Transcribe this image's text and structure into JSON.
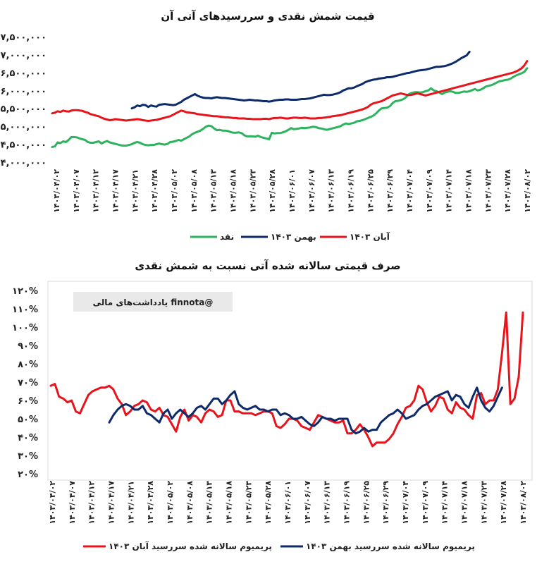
{
  "watermark": "یادداشت‌های مالی finnota@",
  "colors": {
    "spot": "#2db35d",
    "bahman": "#0d2a6b",
    "aban": "#e8141c",
    "watermark_bg": "#e9e9e9"
  },
  "x_labels": [
    "۱۴۰۳/۰۴/۰۲",
    "۱۴۰۳/۰۴/۰۷",
    "۱۴۰۳/۰۴/۱۲",
    "۱۴۰۳/۰۴/۱۷",
    "۱۴۰۳/۰۴/۲۱",
    "۱۴۰۳/۰۴/۲۸",
    "۱۴۰۳/۰۵/۰۲",
    "۱۴۰۳/۰۵/۰۸",
    "۱۴۰۳/۰۵/۱۳",
    "۱۴۰۳/۰۵/۱۸",
    "۱۴۰۳/۰۵/۲۳",
    "۱۴۰۳/۰۵/۲۸",
    "۱۴۰۳/۰۶/۰۱",
    "۱۴۰۳/۰۶/۰۷",
    "۱۴۰۳/۰۶/۱۳",
    "۱۴۰۳/۰۶/۱۹",
    "۱۴۰۳/۰۶/۲۵",
    "۱۴۰۳/۰۶/۲۹",
    "۱۴۰۳/۰۷/۰۴",
    "۱۴۰۳/۰۷/۰۹",
    "۱۴۰۳/۰۷/۱۴",
    "۱۴۰۳/۰۷/۱۸",
    "۱۴۰۳/۰۷/۲۳",
    "۱۴۰۳/۰۷/۲۸",
    "۱۴۰۳/۰۸/۰۲"
  ],
  "chart_data": [
    {
      "type": "line",
      "title": "قیمت شمش نقدی و سررسیدهای آتی آن",
      "ylim": [
        4000000,
        7500000
      ],
      "y_ticks": [
        4000000,
        4500000,
        5000000,
        5500000,
        6000000,
        6500000,
        7000000,
        7500000
      ],
      "y_tick_labels": [
        "۴,۰۰۰,۰۰۰",
        "۴,۵۰۰,۰۰۰",
        "۵,۰۰۰,۰۰۰",
        "۵,۵۰۰,۰۰۰",
        "۶,۰۰۰,۰۰۰",
        "۶,۵۰۰,۰۰۰",
        "۷,۰۰۰,۰۰۰",
        "۷,۵۰۰,۰۰۰"
      ],
      "legend_position": "bottom",
      "grid": false,
      "series": [
        {
          "name": "نقد",
          "color": "#2db35d",
          "start": 0,
          "values": [
            4420000,
            4440000,
            4550000,
            4530000,
            4580000,
            4560000,
            4620000,
            4700000,
            4700000,
            4690000,
            4660000,
            4640000,
            4620000,
            4560000,
            4540000,
            4540000,
            4560000,
            4580000,
            4520000,
            4560000,
            4590000,
            4550000,
            4530000,
            4510000,
            4490000,
            4470000,
            4460000,
            4460000,
            4480000,
            4500000,
            4540000,
            4560000,
            4540000,
            4500000,
            4480000,
            4470000,
            4480000,
            4480000,
            4500000,
            4520000,
            4500000,
            4490000,
            4510000,
            4560000,
            4570000,
            4590000,
            4620000,
            4600000,
            4640000,
            4680000,
            4720000,
            4780000,
            4820000,
            4850000,
            4880000,
            4930000,
            4990000,
            5020000,
            5000000,
            4940000,
            4890000,
            4900000,
            4880000,
            4880000,
            4870000,
            4840000,
            4820000,
            4820000,
            4830000,
            4810000,
            4750000,
            4720000,
            4720000,
            4720000,
            4710000,
            4740000,
            4700000,
            4680000,
            4660000,
            4640000,
            4820000,
            4800000,
            4810000,
            4810000,
            4830000,
            4860000,
            4900000,
            4950000,
            4920000,
            4930000,
            4940000,
            4960000,
            4950000,
            4960000,
            4970000,
            4990000,
            4980000,
            4950000,
            4940000,
            4920000,
            4900000,
            4920000,
            4940000,
            4960000,
            4980000,
            5000000,
            5050000,
            5080000,
            5060000,
            5080000,
            5100000,
            5140000,
            5150000,
            5170000,
            5200000,
            5230000,
            5260000,
            5300000,
            5360000,
            5440000,
            5500000,
            5510000,
            5520000,
            5560000,
            5650000,
            5700000,
            5710000,
            5730000,
            5760000,
            5820000,
            5900000,
            5930000,
            5950000,
            5950000,
            5940000,
            5950000,
            5980000,
            6000000,
            6060000,
            6000000,
            5980000,
            5940000,
            5900000,
            5940000,
            5960000,
            5980000,
            5960000,
            5930000,
            5930000,
            5950000,
            5970000,
            5960000,
            5980000,
            6010000,
            6040000,
            6000000,
            6020000,
            6060000,
            6110000,
            6130000,
            6150000,
            6180000,
            6220000,
            6260000,
            6270000,
            6290000,
            6300000,
            6330000,
            6380000,
            6420000,
            6450000,
            6480000,
            6520000,
            6620000
          ]
        },
        {
          "name": "بهمن ۱۴۰۳",
          "color": "#0d2a6b",
          "start": 29,
          "values": [
            5500000,
            5530000,
            5580000,
            5560000,
            5600000,
            5590000,
            5540000,
            5580000,
            5560000,
            5550000,
            5600000,
            5610000,
            5620000,
            5610000,
            5600000,
            5590000,
            5600000,
            5640000,
            5680000,
            5740000,
            5780000,
            5820000,
            5860000,
            5900000,
            5850000,
            5820000,
            5800000,
            5790000,
            5790000,
            5780000,
            5800000,
            5810000,
            5800000,
            5790000,
            5790000,
            5780000,
            5770000,
            5760000,
            5750000,
            5740000,
            5730000,
            5720000,
            5730000,
            5740000,
            5730000,
            5720000,
            5720000,
            5710000,
            5700000,
            5700000,
            5690000,
            5700000,
            5720000,
            5730000,
            5740000,
            5740000,
            5750000,
            5750000,
            5740000,
            5740000,
            5740000,
            5750000,
            5760000,
            5760000,
            5770000,
            5780000,
            5800000,
            5820000,
            5840000,
            5860000,
            5880000,
            5870000,
            5870000,
            5880000,
            5900000,
            5920000,
            5950000,
            6000000,
            6030000,
            6060000,
            6060000,
            6080000,
            6120000,
            6150000,
            6180000,
            6230000,
            6260000,
            6280000,
            6300000,
            6310000,
            6330000,
            6340000,
            6350000,
            6370000,
            6370000,
            6380000,
            6400000,
            6420000,
            6440000,
            6460000,
            6480000,
            6490000,
            6510000,
            6530000,
            6550000,
            6560000,
            6570000,
            6580000,
            6600000,
            6620000,
            6640000,
            6660000,
            6660000,
            6670000,
            6680000,
            6700000,
            6730000,
            6760000,
            6800000,
            6850000,
            6900000,
            6940000,
            6980000,
            7080000
          ]
        },
        {
          "name": "آبان ۱۴۰۳",
          "color": "#e8141c",
          "start": 0,
          "values": [
            5360000,
            5380000,
            5420000,
            5400000,
            5440000,
            5420000,
            5410000,
            5440000,
            5450000,
            5450000,
            5440000,
            5430000,
            5400000,
            5380000,
            5340000,
            5320000,
            5300000,
            5280000,
            5240000,
            5210000,
            5190000,
            5170000,
            5180000,
            5200000,
            5190000,
            5180000,
            5170000,
            5160000,
            5170000,
            5180000,
            5190000,
            5200000,
            5190000,
            5170000,
            5160000,
            5150000,
            5160000,
            5170000,
            5180000,
            5200000,
            5220000,
            5240000,
            5260000,
            5280000,
            5320000,
            5360000,
            5400000,
            5440000,
            5420000,
            5390000,
            5380000,
            5370000,
            5360000,
            5340000,
            5330000,
            5320000,
            5310000,
            5300000,
            5290000,
            5280000,
            5280000,
            5270000,
            5260000,
            5250000,
            5250000,
            5240000,
            5230000,
            5230000,
            5220000,
            5220000,
            5220000,
            5210000,
            5210000,
            5200000,
            5200000,
            5200000,
            5200000,
            5210000,
            5210000,
            5200000,
            5220000,
            5230000,
            5230000,
            5240000,
            5230000,
            5220000,
            5220000,
            5230000,
            5240000,
            5240000,
            5230000,
            5230000,
            5240000,
            5230000,
            5220000,
            5220000,
            5220000,
            5230000,
            5230000,
            5240000,
            5250000,
            5260000,
            5280000,
            5290000,
            5300000,
            5310000,
            5330000,
            5350000,
            5370000,
            5390000,
            5410000,
            5430000,
            5450000,
            5470000,
            5500000,
            5540000,
            5600000,
            5640000,
            5660000,
            5680000,
            5700000,
            5740000,
            5780000,
            5820000,
            5860000,
            5880000,
            5900000,
            5920000,
            5900000,
            5880000,
            5870000,
            5880000,
            5900000,
            5920000,
            5900000,
            5880000,
            5860000,
            5880000,
            5900000,
            5920000,
            5940000,
            5960000,
            5980000,
            6000000,
            6020000,
            6040000,
            6060000,
            6080000,
            6100000,
            6120000,
            6140000,
            6160000,
            6180000,
            6200000,
            6220000,
            6240000,
            6260000,
            6280000,
            6300000,
            6320000,
            6340000,
            6360000,
            6380000,
            6400000,
            6420000,
            6440000,
            6460000,
            6480000,
            6500000,
            6530000,
            6570000,
            6620000,
            6700000,
            6820000
          ]
        }
      ]
    },
    {
      "type": "line",
      "title": "صرف قیمتی سالانه شده آتی نسبت به شمش نقدی",
      "ylim": [
        20,
        120
      ],
      "y_ticks": [
        20,
        30,
        40,
        50,
        60,
        70,
        80,
        90,
        100,
        110,
        120
      ],
      "y_tick_labels": [
        "۲۰%",
        "۳۰%",
        "۴۰%",
        "۵۰%",
        "۶۰%",
        "۷۰%",
        "۸۰%",
        "۹۰%",
        "۱۰۰%",
        "۱۱۰%",
        "۱۲۰%"
      ],
      "legend_position": "bottom",
      "grid": false,
      "series": [
        {
          "name": "پریمیوم سالانه شده سررسید آبان ۱۴۰۳",
          "color": "#e8141c",
          "start": 0,
          "values": [
            68,
            69,
            62,
            61,
            59,
            60,
            54,
            53,
            58,
            63,
            65,
            66,
            67,
            67,
            68,
            66,
            61,
            58,
            52,
            54,
            57,
            58,
            60,
            59,
            55,
            54,
            56,
            52,
            51,
            47,
            43,
            51,
            55,
            49,
            52,
            51,
            48,
            53,
            55,
            54,
            51,
            52,
            60,
            60,
            54,
            54,
            53,
            53,
            53,
            52,
            53,
            54,
            54,
            53,
            46,
            45,
            47,
            50,
            50,
            49,
            46,
            45,
            44,
            48,
            52,
            51,
            50,
            49,
            48,
            48,
            49,
            42,
            42,
            44,
            47,
            44,
            40,
            35,
            37,
            37,
            37,
            39,
            42,
            47,
            51,
            56,
            57,
            60,
            68,
            66,
            59,
            54,
            57,
            62,
            61,
            55,
            53,
            59,
            56,
            55,
            52,
            50,
            63,
            64,
            58,
            60,
            60,
            66,
            86,
            108,
            58,
            61,
            73,
            108
          ]
        },
        {
          "name": "پریمیوم سالانه شده سررسید بهمن ۱۴۰۳",
          "color": "#0d2a6b",
          "start": 14,
          "values": [
            48,
            52,
            55,
            57,
            58,
            57,
            55,
            55,
            57,
            53,
            52,
            50,
            48,
            53,
            55,
            50,
            53,
            55,
            53,
            51,
            53,
            56,
            57,
            55,
            58,
            61,
            61,
            58,
            60,
            63,
            65,
            58,
            56,
            55,
            56,
            57,
            55,
            55,
            54,
            55,
            55,
            52,
            53,
            52,
            50,
            50,
            51,
            49,
            47,
            46,
            48,
            51,
            50,
            50,
            49,
            50,
            50,
            50,
            44,
            42,
            43,
            45,
            43,
            44,
            44,
            48,
            50,
            52,
            53,
            55,
            53,
            50,
            51,
            52,
            55,
            57,
            58,
            60,
            62,
            63,
            64,
            65,
            60,
            63,
            62,
            58,
            56,
            62,
            67,
            60,
            56,
            54,
            57,
            62,
            67
          ]
        }
      ]
    }
  ]
}
